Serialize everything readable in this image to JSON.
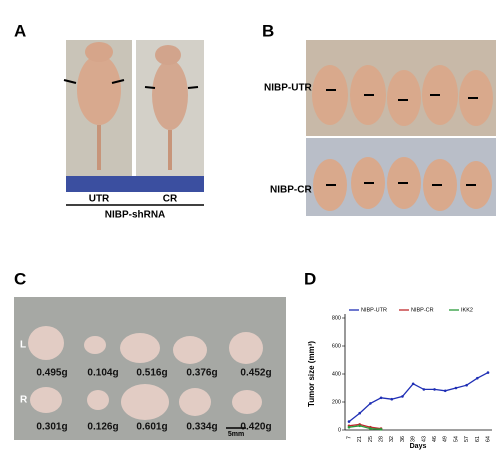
{
  "panels": {
    "a": {
      "label": "A",
      "columns": [
        "UTR",
        "CR"
      ],
      "group": "NIBP-shRNA"
    },
    "b": {
      "label": "B",
      "rows": [
        "NIBP-UTR",
        "NIBP-CR"
      ]
    },
    "c": {
      "label": "C",
      "rows": [
        "L",
        "R"
      ],
      "weights": [
        [
          "0.495g",
          "0.104g",
          "0.516g",
          "0.376g",
          "0.452g"
        ],
        [
          "0.301g",
          "0.126g",
          "0.601g",
          "0.334g",
          "0.420g"
        ]
      ],
      "scale_bar": "5mm"
    },
    "d": {
      "label": "D"
    }
  },
  "chart_data": {
    "type": "line",
    "y_label": "Tumor size (mm³)",
    "x_label": "Days",
    "categories": [
      "7",
      "21",
      "25",
      "28",
      "32",
      "36",
      "39",
      "43",
      "46",
      "49",
      "54",
      "57",
      "61",
      "64"
    ],
    "series": [
      {
        "name": "NIBP-UTR",
        "color": "#1f2fb5",
        "values": [
          60,
          120,
          190,
          230,
          220,
          240,
          330,
          290,
          290,
          280,
          300,
          320,
          370,
          410
        ]
      },
      {
        "name": "NIBP-CR",
        "color": "#c0282d",
        "values": [
          30,
          40,
          20,
          10,
          null,
          null,
          null,
          null,
          null,
          null,
          null,
          null,
          null,
          null
        ]
      },
      {
        "name": "IKK2",
        "color": "#2a9a3a",
        "values": [
          20,
          30,
          10,
          5,
          null,
          null,
          null,
          null,
          null,
          null,
          null,
          null,
          null,
          null
        ]
      }
    ],
    "ylim": [
      0,
      800
    ],
    "yticks": [
      0,
      200,
      400,
      600,
      800
    ]
  }
}
